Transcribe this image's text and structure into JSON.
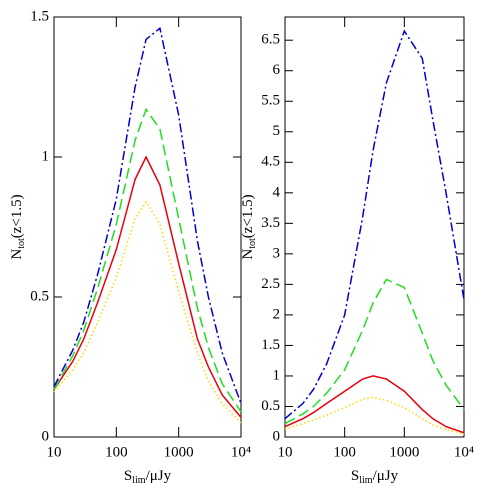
{
  "chart_data": [
    {
      "type": "line",
      "x_label": {
        "main": "S",
        "sub": "lim",
        "rest": "/μJy"
      },
      "y_label": {
        "main": "N",
        "sub": "tot",
        "rest": "(z<1.5)"
      },
      "x": [
        10,
        20,
        30,
        50,
        100,
        200,
        300,
        500,
        1000,
        2000,
        3000,
        5000,
        10000
      ],
      "xlog": true,
      "xlim": [
        10,
        10000
      ],
      "xticks": [
        10,
        100,
        1000,
        {
          "value": 10000,
          "label": "10⁴"
        }
      ],
      "ylim": [
        0,
        1.5
      ],
      "yticks": [
        0,
        0.5,
        1,
        1.5
      ],
      "series": [
        {
          "color": "#ffd700",
          "style": "dotted",
          "values": [
            0.16,
            0.24,
            0.3,
            0.41,
            0.57,
            0.78,
            0.84,
            0.76,
            0.52,
            0.3,
            0.2,
            0.12,
            0.05
          ]
        },
        {
          "color": "#e8000b",
          "style": "solid",
          "values": [
            0.17,
            0.27,
            0.35,
            0.48,
            0.67,
            0.92,
            1.0,
            0.9,
            0.62,
            0.35,
            0.25,
            0.15,
            0.07
          ]
        },
        {
          "color": "#22dd22",
          "style": "dashed",
          "values": [
            0.17,
            0.29,
            0.38,
            0.53,
            0.76,
            1.06,
            1.17,
            1.1,
            0.78,
            0.46,
            0.32,
            0.19,
            0.09
          ]
        },
        {
          "color": "#0000cc",
          "style": "dashdot",
          "values": [
            0.18,
            0.31,
            0.41,
            0.58,
            0.85,
            1.25,
            1.42,
            1.46,
            1.15,
            0.7,
            0.5,
            0.3,
            0.12
          ]
        }
      ]
    },
    {
      "type": "line",
      "x_label": {
        "main": "S",
        "sub": "lim",
        "rest": "/μJy"
      },
      "y_label": {
        "main": "N",
        "sub": "tot",
        "rest": "(z<1.5)"
      },
      "x": [
        10,
        20,
        30,
        50,
        100,
        200,
        300,
        500,
        1000,
        2000,
        3000,
        5000,
        10000
      ],
      "xlog": true,
      "xlim": [
        10,
        10000
      ],
      "xticks": [
        10,
        100,
        1000,
        {
          "value": 10000,
          "label": "10⁴"
        }
      ],
      "ylim": [
        0,
        6.88
      ],
      "yticks": [
        0,
        0.5,
        1,
        1.5,
        2,
        2.5,
        3,
        3.5,
        4,
        4.5,
        5,
        5.5,
        6,
        6.5
      ],
      "series": [
        {
          "color": "#ffd700",
          "style": "dotted",
          "values": [
            0.13,
            0.22,
            0.28,
            0.36,
            0.48,
            0.62,
            0.65,
            0.6,
            0.48,
            0.3,
            0.2,
            0.12,
            0.05
          ]
        },
        {
          "color": "#e8000b",
          "style": "solid",
          "values": [
            0.17,
            0.3,
            0.4,
            0.55,
            0.75,
            0.95,
            1.0,
            0.95,
            0.75,
            0.45,
            0.3,
            0.17,
            0.07
          ]
        },
        {
          "color": "#22dd22",
          "style": "dashed",
          "values": [
            0.22,
            0.38,
            0.5,
            0.72,
            1.1,
            1.75,
            2.2,
            2.58,
            2.45,
            1.7,
            1.25,
            0.85,
            0.45
          ]
        },
        {
          "color": "#0000cc",
          "style": "dashdot",
          "values": [
            0.3,
            0.55,
            0.78,
            1.2,
            2.0,
            3.6,
            4.7,
            5.8,
            6.65,
            6.2,
            5.2,
            4.0,
            2.25
          ]
        }
      ]
    }
  ]
}
